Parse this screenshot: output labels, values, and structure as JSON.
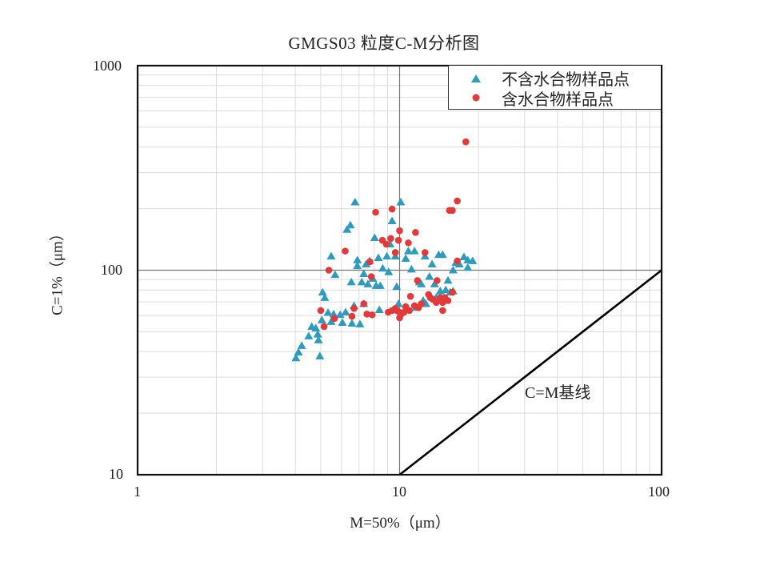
{
  "chart_data": {
    "type": "scatter",
    "title": "GMGS03 粒度C-M分析图",
    "xlabel": "M=50%（μm）",
    "ylabel": "C=1%（μm）",
    "xscale": "log",
    "yscale": "log",
    "xlim": [
      1,
      100
    ],
    "ylim": [
      10,
      1000
    ],
    "x_ticks": [
      "1",
      "10",
      "100"
    ],
    "y_ticks": [
      "10",
      "100",
      "1000"
    ],
    "grid": true,
    "legend_position": "upper right",
    "colors": {
      "triangle": "#2e9bbd",
      "circle": "#e03a3a",
      "baseline": "#000000"
    },
    "reference_line": {
      "label": "C=M基线",
      "x": [
        10,
        100
      ],
      "y": [
        10,
        100
      ]
    },
    "series": [
      {
        "name": "不含水合物样品点",
        "marker": "triangle",
        "color": "#2e9bbd",
        "points": [
          [
            4.02,
            37.2
          ],
          [
            4.11,
            39.7
          ],
          [
            4.23,
            42.7
          ],
          [
            4.5,
            47.6
          ],
          [
            4.62,
            53
          ],
          [
            4.79,
            52
          ],
          [
            4.9,
            45.5
          ],
          [
            4.96,
            38.0
          ],
          [
            4.87,
            48.6
          ],
          [
            5.08,
            78
          ],
          [
            5.18,
            73.4
          ],
          [
            5.05,
            57
          ],
          [
            5.33,
            62
          ],
          [
            5.48,
            56
          ],
          [
            5.6,
            61
          ],
          [
            5.48,
            117
          ],
          [
            5.67,
            95
          ],
          [
            5.93,
            60.6
          ],
          [
            6.05,
            55.4
          ],
          [
            6.22,
            62.3
          ],
          [
            6.3,
            158
          ],
          [
            6.49,
            166
          ],
          [
            6.76,
            215
          ],
          [
            6.54,
            87.5
          ],
          [
            6.58,
            54.9
          ],
          [
            6.7,
            67
          ],
          [
            6.9,
            112
          ],
          [
            6.9,
            105
          ],
          [
            7.06,
            54.5
          ],
          [
            7.17,
            87.5
          ],
          [
            7.3,
            96
          ],
          [
            7.3,
            68.5
          ],
          [
            7.45,
            107
          ],
          [
            7.57,
            85.5
          ],
          [
            7.68,
            111
          ],
          [
            7.9,
            91
          ],
          [
            8.03,
            144
          ],
          [
            8.13,
            84
          ],
          [
            8.3,
            115
          ],
          [
            8.37,
            64
          ],
          [
            8.44,
            84
          ],
          [
            8.62,
            102
          ],
          [
            8.94,
            117
          ],
          [
            9.08,
            98
          ],
          [
            9.2,
            134
          ],
          [
            9.36,
            174
          ],
          [
            9.63,
            117
          ],
          [
            9.75,
            83
          ],
          [
            9.9,
            68.5
          ],
          [
            10.1,
            215
          ],
          [
            10.55,
            114
          ],
          [
            10.8,
            124
          ],
          [
            11.1,
            101
          ],
          [
            11.4,
            124
          ],
          [
            11.6,
            65.6
          ],
          [
            11.9,
            87.5
          ],
          [
            12.1,
            85.5
          ],
          [
            12.3,
            71
          ],
          [
            12.5,
            117
          ],
          [
            12.6,
            68.5
          ],
          [
            13.0,
            93
          ],
          [
            13.3,
            107
          ],
          [
            13.6,
            85.5
          ],
          [
            13.8,
            73.5
          ],
          [
            14.1,
            119
          ],
          [
            14.3,
            79
          ],
          [
            14.6,
            119
          ],
          [
            15.0,
            80
          ],
          [
            15.3,
            89
          ],
          [
            15.6,
            78
          ],
          [
            16.0,
            100
          ],
          [
            16.4,
            109
          ],
          [
            16.9,
            107
          ],
          [
            17.6,
            116
          ],
          [
            18.2,
            112
          ],
          [
            19.0,
            111
          ],
          [
            18.2,
            103
          ],
          [
            16.0,
            79
          ]
        ]
      },
      {
        "name": "含水合物样品点",
        "marker": "circle",
        "color": "#e03a3a",
        "points": [
          [
            5.15,
            53
          ],
          [
            5.0,
            63.5
          ],
          [
            5.37,
            100
          ],
          [
            5.64,
            58
          ],
          [
            6.2,
            124
          ],
          [
            6.58,
            59.5
          ],
          [
            6.7,
            65
          ],
          [
            7.3,
            68.5
          ],
          [
            7.5,
            61
          ],
          [
            7.7,
            110
          ],
          [
            7.8,
            93
          ],
          [
            7.86,
            60.5
          ],
          [
            8.1,
            192
          ],
          [
            8.6,
            140
          ],
          [
            8.9,
            134
          ],
          [
            9.05,
            62.3
          ],
          [
            9.25,
            143
          ],
          [
            9.36,
            199
          ],
          [
            9.36,
            63.5
          ],
          [
            9.63,
            122
          ],
          [
            9.63,
            65
          ],
          [
            9.75,
            63.5
          ],
          [
            9.9,
            140
          ],
          [
            10.0,
            156
          ],
          [
            10.0,
            62.3
          ],
          [
            10.0,
            58.5
          ],
          [
            10.1,
            60.6
          ],
          [
            10.4,
            62.3
          ],
          [
            10.55,
            66.3
          ],
          [
            10.8,
            136
          ],
          [
            10.9,
            63.5
          ],
          [
            11.0,
            74.5
          ],
          [
            11.4,
            67
          ],
          [
            11.5,
            153
          ],
          [
            11.7,
            89
          ],
          [
            11.8,
            65.6
          ],
          [
            12.1,
            68.5
          ],
          [
            12.5,
            122
          ],
          [
            12.9,
            76
          ],
          [
            13.1,
            73.4
          ],
          [
            13.4,
            72
          ],
          [
            13.8,
            69.5
          ],
          [
            13.9,
            89
          ],
          [
            14.3,
            73.4
          ],
          [
            14.6,
            63.5
          ],
          [
            14.6,
            69.5
          ],
          [
            14.9,
            73.4
          ],
          [
            15.3,
            71
          ],
          [
            15.5,
            196
          ],
          [
            15.9,
            196
          ],
          [
            15.9,
            78
          ],
          [
            16.6,
            218
          ],
          [
            16.6,
            111
          ],
          [
            17.9,
            424
          ]
        ]
      }
    ]
  }
}
